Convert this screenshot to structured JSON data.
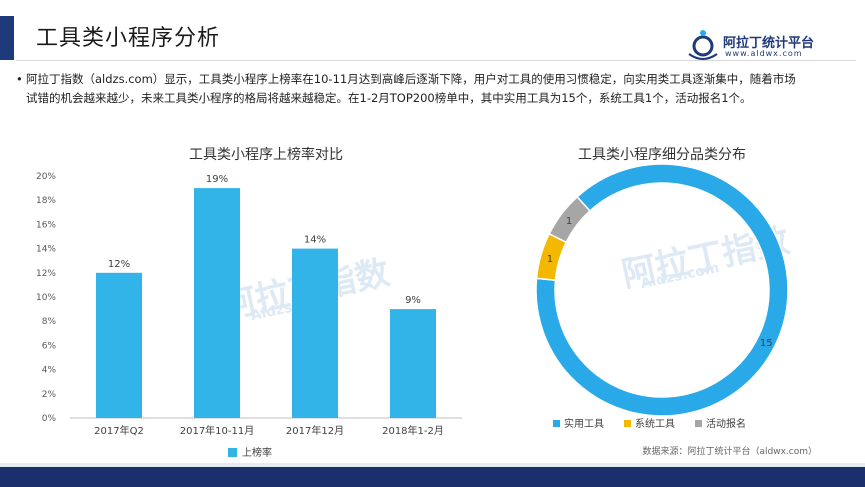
{
  "header": {
    "title": "工具类小程序分析",
    "logo_name": "阿拉丁统计平台",
    "logo_url": "www.aldwx.com",
    "accent_color": "#1f3a7a"
  },
  "bullet": {
    "text": "阿拉丁指数（aldzs.com）显示，工具类小程序上榜率在10-11月达到高峰后逐渐下降，用户对工具的使用习惯稳定，向实用类工具逐渐集中，随着市场试错的机会越来越少，未来工具类小程序的格局将越来越稳定。在1-2月TOP200榜单中，其中实用工具为15个，系统工具1个，活动报名1个。"
  },
  "watermark": {
    "text": "阿拉丁指数",
    "sub": "Aldzs.com"
  },
  "chart_data": [
    {
      "type": "bar",
      "title": "工具类小程序上榜率对比",
      "categories": [
        "2017年Q2",
        "2017年10-11月",
        "2017年12月",
        "2018年1-2月"
      ],
      "series": [
        {
          "name": "上榜率",
          "values": [
            12,
            19,
            14,
            9
          ],
          "color": "#33b4e8"
        }
      ],
      "data_labels": [
        "12%",
        "19%",
        "14%",
        "9%"
      ],
      "ytick_labels": [
        "0%",
        "2%",
        "4%",
        "6%",
        "8%",
        "10%",
        "12%",
        "14%",
        "16%",
        "18%",
        "20%"
      ],
      "ylim": [
        0,
        20
      ],
      "grid": false,
      "legend": "bottom"
    },
    {
      "type": "pie",
      "title": "工具类小程序细分品类分布",
      "labels": [
        "实用工具",
        "系统工具",
        "活动报名"
      ],
      "values": [
        15,
        1,
        1
      ],
      "colors": [
        "#29a9e8",
        "#f5b800",
        "#a6a6a6"
      ],
      "donut": true,
      "legend": "bottom"
    }
  ],
  "footer": {
    "source": "数据来源：阿拉丁统计平台（aldwx.com）"
  }
}
